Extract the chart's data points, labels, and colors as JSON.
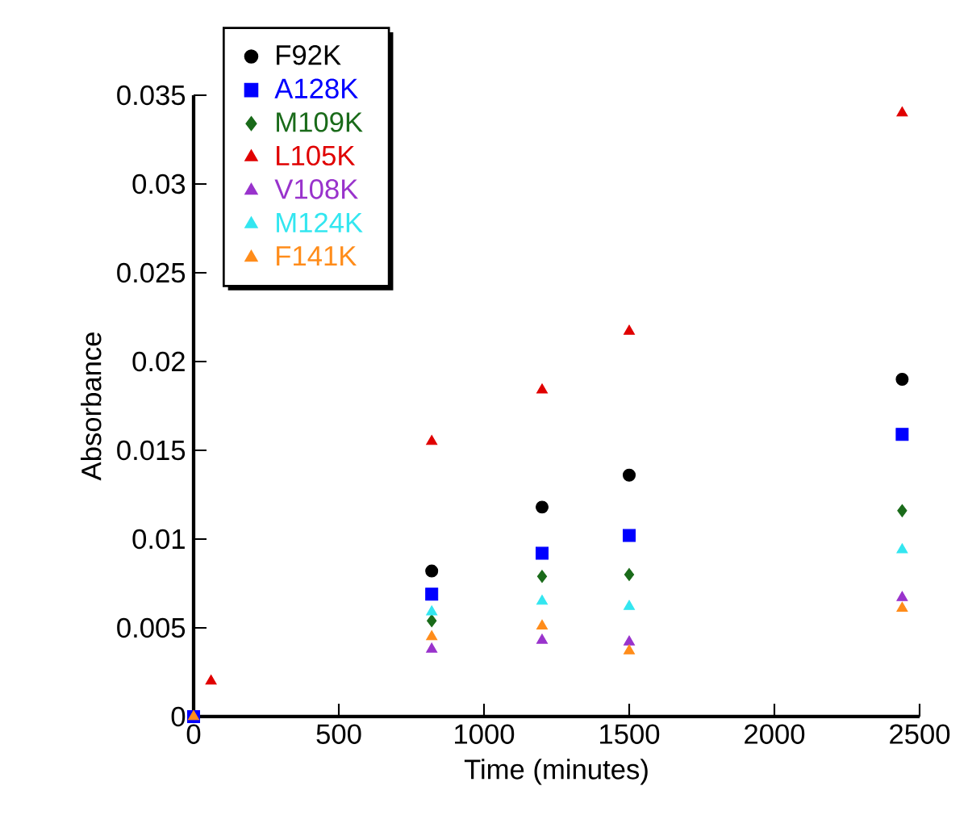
{
  "chart_data": {
    "type": "scatter",
    "xlabel": "Time (minutes)",
    "ylabel": "Absorbance",
    "xlim": [
      0,
      2500
    ],
    "ylim": [
      0,
      0.035
    ],
    "xticks": [
      0,
      500,
      1000,
      1500,
      2000,
      2500
    ],
    "yticks": [
      0,
      0.005,
      0.01,
      0.015,
      0.02,
      0.025,
      0.03,
      0.035
    ],
    "grid": false,
    "legend": "top left",
    "series": [
      {
        "name": "F92K",
        "color": "#000000",
        "marker": "circle",
        "x": [
          820,
          1200,
          1500,
          2440
        ],
        "values": [
          0.0082,
          0.0118,
          0.0136,
          0.019
        ]
      },
      {
        "name": "A128K",
        "color": "#0000ff",
        "marker": "square",
        "x": [
          0,
          820,
          1200,
          1500,
          2440
        ],
        "values": [
          0,
          0.0069,
          0.0092,
          0.0102,
          0.0159
        ]
      },
      {
        "name": "M109K",
        "color": "#1a6b1a",
        "marker": "diamond",
        "x": [
          820,
          1200,
          1500,
          2440
        ],
        "values": [
          0.0054,
          0.0079,
          0.008,
          0.0116
        ]
      },
      {
        "name": "L105K",
        "color": "#e00000",
        "marker": "triangle",
        "x": [
          60,
          820,
          1200,
          1500,
          2440
        ],
        "values": [
          0.002,
          0.0155,
          0.0184,
          0.0217,
          0.034
        ]
      },
      {
        "name": "V108K",
        "color": "#9933cc",
        "marker": "triangle",
        "x": [
          820,
          1200,
          1500,
          2440
        ],
        "values": [
          0.0038,
          0.0043,
          0.0042,
          0.0067
        ]
      },
      {
        "name": "M124K",
        "color": "#33e6f0",
        "marker": "triangle",
        "x": [
          820,
          1200,
          1500,
          2440
        ],
        "values": [
          0.0059,
          0.0065,
          0.0062,
          0.0094
        ]
      },
      {
        "name": "F141K",
        "color": "#ff8c1a",
        "marker": "triangle",
        "x": [
          0,
          820,
          1200,
          1500,
          2440
        ],
        "values": [
          0,
          0.0045,
          0.0051,
          0.0037,
          0.0061
        ]
      }
    ]
  }
}
